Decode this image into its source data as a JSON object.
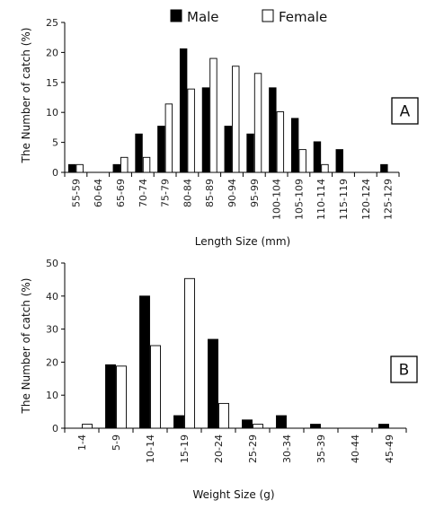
{
  "legend": [
    {
      "label": "Male",
      "color": "#000000"
    },
    {
      "label": "Female",
      "color": "#ffffff"
    }
  ],
  "chart_data": [
    {
      "type": "bar",
      "panel_label": "A",
      "categories": [
        "55-59",
        "60-64",
        "65-69",
        "70-74",
        "75-79",
        "80-84",
        "85-89",
        "90-94",
        "95-99",
        "100-104",
        "105-109",
        "110-114",
        "115-119",
        "120-124",
        "125-129"
      ],
      "series": [
        {
          "name": "Male",
          "values": [
            1.3,
            0,
            1.3,
            6.4,
            7.7,
            20.6,
            14.1,
            7.7,
            6.4,
            14.1,
            9.0,
            5.1,
            3.8,
            0,
            1.3
          ]
        },
        {
          "name": "Female",
          "values": [
            1.3,
            0,
            2.5,
            2.5,
            11.4,
            13.9,
            19.0,
            17.7,
            16.5,
            10.1,
            3.8,
            1.3,
            0,
            0,
            0
          ]
        }
      ],
      "xlabel": "Length Size (mm)",
      "ylabel": "The Number of catch (%)",
      "ylim": [
        0,
        25
      ],
      "yticks": [
        0,
        5,
        10,
        15,
        20,
        25
      ],
      "grid": false
    },
    {
      "type": "bar",
      "panel_label": "B",
      "categories": [
        "1-4",
        "5-9",
        "10-14",
        "15-19",
        "20-24",
        "25-29",
        "30-34",
        "35-39",
        "40-44",
        "45-49"
      ],
      "series": [
        {
          "name": "Male",
          "values": [
            0,
            19.2,
            40.0,
            3.8,
            26.9,
            2.5,
            3.8,
            1.2,
            0,
            1.2
          ]
        },
        {
          "name": "Female",
          "values": [
            1.2,
            18.8,
            25.0,
            45.3,
            7.5,
            1.2,
            0,
            0,
            0,
            0
          ]
        }
      ],
      "xlabel": "Weight Size (g)",
      "ylabel": "The Number of catch (%)",
      "ylim": [
        0,
        50
      ],
      "yticks": [
        0,
        10,
        20,
        30,
        40,
        50
      ],
      "grid": false
    }
  ]
}
